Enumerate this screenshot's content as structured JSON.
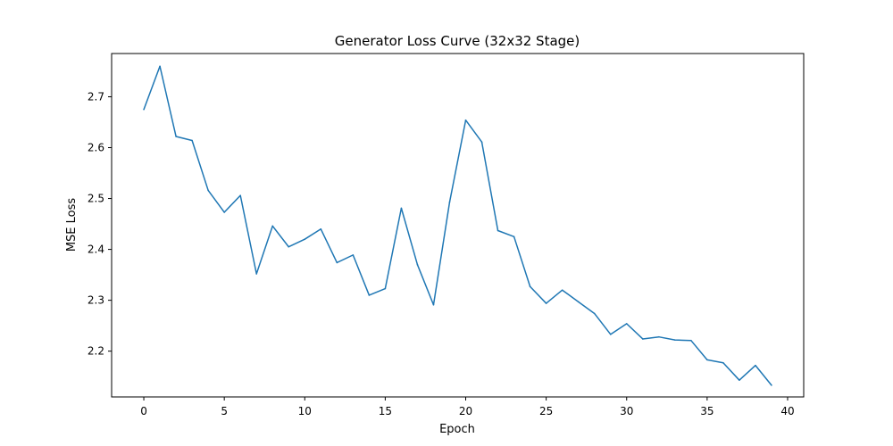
{
  "chart_data": {
    "type": "line",
    "title": "Generator Loss Curve (32x32 Stage)",
    "xlabel": "Epoch",
    "ylabel": "MSE Loss",
    "xlim": [
      -2,
      41
    ],
    "ylim": [
      2.11,
      2.785
    ],
    "xticks": [
      0,
      5,
      10,
      15,
      20,
      25,
      30,
      35,
      40
    ],
    "xtick_labels": [
      "0",
      "5",
      "10",
      "15",
      "20",
      "25",
      "30",
      "35",
      "40"
    ],
    "yticks": [
      2.2,
      2.3,
      2.4,
      2.5,
      2.6,
      2.7
    ],
    "ytick_labels": [
      "2.2",
      "2.3",
      "2.4",
      "2.5",
      "2.6",
      "2.7"
    ],
    "grid": false,
    "colors": {
      "line": "#1f77b4"
    },
    "series": [
      {
        "x": [
          0,
          1,
          2,
          3,
          4,
          5,
          6,
          7,
          8,
          9,
          10,
          11,
          12,
          13,
          14,
          15,
          16,
          17,
          18,
          19,
          20,
          21,
          22,
          23,
          24,
          25,
          26,
          27,
          28,
          29,
          30,
          31,
          32,
          33,
          34,
          35,
          36,
          37,
          38,
          39
        ],
        "values": [
          2.675,
          2.76,
          2.622,
          2.614,
          2.516,
          2.473,
          2.506,
          2.352,
          2.446,
          2.405,
          2.42,
          2.44,
          2.374,
          2.389,
          2.31,
          2.323,
          2.481,
          2.37,
          2.291,
          2.493,
          2.654,
          2.611,
          2.437,
          2.425,
          2.327,
          2.294,
          2.32,
          2.297,
          2.274,
          2.233,
          2.254,
          2.224,
          2.228,
          2.222,
          2.221,
          2.183,
          2.177,
          2.143,
          2.172,
          2.133
        ]
      }
    ]
  }
}
